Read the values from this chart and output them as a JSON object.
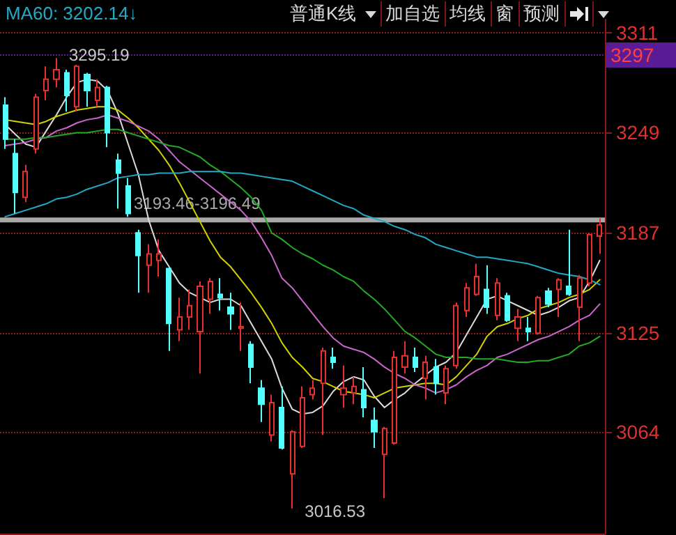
{
  "chart_data": {
    "type": "candlestick",
    "categories": [
      null,
      null,
      null,
      null,
      null,
      null,
      null,
      null,
      null,
      null,
      null,
      null,
      null,
      null,
      null,
      null,
      null,
      null,
      null,
      null,
      null,
      null,
      null,
      null,
      null,
      null,
      null,
      null,
      null,
      null,
      null,
      null,
      null,
      null,
      null,
      null,
      null,
      null,
      null,
      null,
      null,
      null,
      null,
      null,
      null,
      null,
      null,
      null,
      null,
      null,
      null,
      null,
      null,
      null,
      null,
      null,
      null,
      null,
      null
    ],
    "ohlc": [
      [
        3266,
        3271,
        3239,
        3245
      ],
      [
        3236,
        3245,
        3199,
        3212
      ],
      [
        3209,
        3229,
        3206,
        3225
      ],
      [
        3239,
        3273,
        3236,
        3271
      ],
      [
        3275,
        3290,
        3269,
        3282
      ],
      [
        3282,
        3295.19,
        3277,
        3288
      ],
      [
        3286,
        3288,
        3262,
        3272
      ],
      [
        3265,
        3291,
        3262,
        3290
      ],
      [
        3285,
        3286,
        3265,
        3275
      ],
      [
        3269,
        3282,
        3265,
        3277
      ],
      [
        3277,
        3278,
        3240,
        3249
      ],
      [
        3232,
        3236,
        3202,
        3224
      ],
      [
        3216,
        3221,
        3197,
        3199
      ],
      [
        3187,
        3189,
        3150,
        3173
      ],
      [
        3167,
        3180,
        3150,
        3174
      ],
      [
        3170,
        3183,
        3160,
        3174
      ],
      [
        3165,
        3166,
        3114,
        3131
      ],
      [
        3127,
        3147,
        3120,
        3135
      ],
      [
        3135,
        3152,
        3127,
        3142
      ],
      [
        3126,
        3157,
        3100,
        3154
      ],
      [
        3146,
        3159,
        3137,
        3157
      ],
      [
        3149,
        3159,
        3139,
        3147
      ],
      [
        3141,
        3150,
        3127,
        3137
      ],
      [
        3128,
        3144,
        3114,
        3129
      ],
      [
        3118,
        3120,
        3094,
        3104
      ],
      [
        3091,
        3096,
        3070,
        3081
      ],
      [
        3062,
        3087,
        3058,
        3082
      ],
      [
        3079,
        3092,
        3053,
        3054
      ],
      [
        3038,
        3065,
        3016.53,
        3064
      ],
      [
        3055,
        3092,
        3054,
        3085
      ],
      [
        3087,
        3096,
        3084,
        3091
      ],
      [
        3094,
        3116,
        3062,
        3114
      ],
      [
        3110,
        3116,
        3103,
        3107
      ],
      [
        3087,
        3105,
        3079,
        3091
      ],
      [
        3088,
        3098,
        3081,
        3092
      ],
      [
        3090,
        3104,
        3073,
        3079
      ],
      [
        3071,
        3079,
        3054,
        3064
      ],
      [
        3050,
        3067,
        3023,
        3066
      ],
      [
        3057,
        3114,
        3056,
        3110
      ],
      [
        3104,
        3120,
        3100,
        3111
      ],
      [
        3110,
        3116,
        3101,
        3104
      ],
      [
        3097,
        3111,
        3084,
        3107
      ],
      [
        3104,
        3109,
        3087,
        3094
      ],
      [
        3088,
        3105,
        3081,
        3103
      ],
      [
        3105,
        3144,
        3103,
        3142
      ],
      [
        3139,
        3156,
        3135,
        3153
      ],
      [
        3149,
        3168,
        3148,
        3160
      ],
      [
        3152,
        3167,
        3137,
        3141
      ],
      [
        3136,
        3159,
        3133,
        3156
      ],
      [
        3148,
        3150,
        3132,
        3133
      ],
      [
        3128,
        3140,
        3120,
        3135
      ],
      [
        3128,
        3135,
        3120,
        3126
      ],
      [
        3125,
        3148,
        3124,
        3147
      ],
      [
        3151,
        3153,
        3141,
        3143
      ],
      [
        3152,
        3159,
        3135,
        3158
      ],
      [
        3154,
        3189,
        3148,
        3149
      ],
      [
        3141,
        3161,
        3120,
        3159
      ],
      [
        3156,
        3187,
        3154,
        3186
      ],
      [
        3185,
        3196,
        3174,
        3192
      ]
    ],
    "series": [
      {
        "type": "line",
        "color": "#dcdcdc",
        "values": [
          3254,
          3248,
          3242,
          3240,
          3250,
          3260,
          3271,
          3280,
          3282,
          3281,
          3275,
          3261,
          3242,
          3223,
          3195,
          3176,
          3166,
          3156,
          3150,
          3147,
          3144,
          3146,
          3146,
          3142,
          3131,
          3120,
          3109,
          3091,
          3078,
          3075,
          3076,
          3080,
          3089,
          3095,
          3098,
          3096,
          3086,
          3079,
          3084,
          3088,
          3094,
          3099,
          3104,
          3107,
          3113,
          3124,
          3135,
          3146,
          3148,
          3145,
          3142,
          3139,
          3136,
          3138,
          3141,
          3145,
          3147,
          3157,
          3170
        ]
      },
      {
        "type": "line",
        "color": "#d2d200",
        "values": [
          3257,
          3256,
          3255,
          3254,
          3256,
          3259,
          3261,
          3263,
          3264,
          3265,
          3265,
          3263,
          3258,
          3252,
          3245,
          3238,
          3229,
          3218,
          3206,
          3194,
          3182,
          3172,
          3166,
          3158,
          3150,
          3141,
          3131,
          3119,
          3110,
          3104,
          3097,
          3095,
          3092,
          3089,
          3088,
          3087,
          3085,
          3088,
          3091,
          3092,
          3093,
          3094,
          3094,
          3093,
          3098,
          3105,
          3112,
          3123,
          3129,
          3131,
          3134,
          3136,
          3140,
          3142,
          3144,
          3147,
          3149,
          3152,
          3158
        ]
      },
      {
        "type": "line",
        "color": "#cc66cc",
        "values": [
          3241,
          3242,
          3243,
          3245,
          3246,
          3250,
          3252,
          3255,
          3257,
          3258,
          3260,
          3258,
          3256,
          3253,
          3250,
          3245,
          3238,
          3231,
          3226,
          3221,
          3216,
          3211,
          3206,
          3201,
          3194,
          3184,
          3173,
          3159,
          3153,
          3145,
          3137,
          3129,
          3122,
          3117,
          3115,
          3113,
          3109,
          3104,
          3100,
          3097,
          3093,
          3091,
          3088,
          3090,
          3093,
          3098,
          3102,
          3105,
          3110,
          3112,
          3115,
          3118,
          3121,
          3123,
          3126,
          3129,
          3133,
          3136,
          3143
        ]
      },
      {
        "type": "line",
        "color": "#22aa22",
        "values": [
          3245,
          3245,
          3245,
          3246,
          3246,
          3247,
          3248,
          3249,
          3249,
          3250,
          3251,
          3251,
          3249,
          3247,
          3245,
          3243,
          3241,
          3240,
          3237,
          3234,
          3229,
          3225,
          3220,
          3215,
          3209,
          3201,
          3187,
          3183,
          3178,
          3174,
          3171,
          3167,
          3164,
          3160,
          3157,
          3151,
          3146,
          3140,
          3133,
          3126,
          3122,
          3117,
          3112,
          3110,
          3110,
          3110,
          3109,
          3109,
          3109,
          3108,
          3107,
          3107,
          3108,
          3108,
          3110,
          3112,
          3117,
          3119,
          3123
        ]
      },
      {
        "type": "line",
        "name": "MA60: 3202.14↓",
        "color": "#22aac4",
        "values": [
          3197,
          3199,
          3201,
          3203,
          3205,
          3208,
          3209,
          3211,
          3214,
          3216,
          3218,
          3221,
          3222,
          3223,
          3223,
          3224,
          3224,
          3224,
          3225,
          3225,
          3225,
          3225,
          3224,
          3224,
          3223,
          3222,
          3221,
          3220,
          3219,
          3216,
          3213,
          3210,
          3207,
          3204,
          3202,
          3198,
          3196,
          3194,
          3191,
          3189,
          3186,
          3184,
          3180,
          3178,
          3176,
          3174,
          3172,
          3172,
          3171,
          3170,
          3169,
          3168,
          3166,
          3164,
          3162,
          3161,
          3160,
          3158,
          3155
        ]
      }
    ],
    "ylim": [
      3001,
      3319
    ],
    "yticks": [
      3311,
      3249,
      3187,
      3125,
      3064
    ],
    "grid": "y",
    "tick_labels": "y",
    "legend": "top left",
    "marker": "none",
    "bands": [
      {
        "axis": "y",
        "from": 3193.46,
        "to": 3196.49,
        "label": "3193.46-3196.49",
        "color": "#a8a8a8"
      }
    ],
    "ref_lines": [
      {
        "axis": "y",
        "value": 3297,
        "label": "3297",
        "color": "#5a1c96"
      }
    ],
    "annotations": [
      "普通K线",
      "加自选",
      "均线",
      "窗",
      "预测",
      "3295.19",
      "3016.53"
    ]
  }
}
